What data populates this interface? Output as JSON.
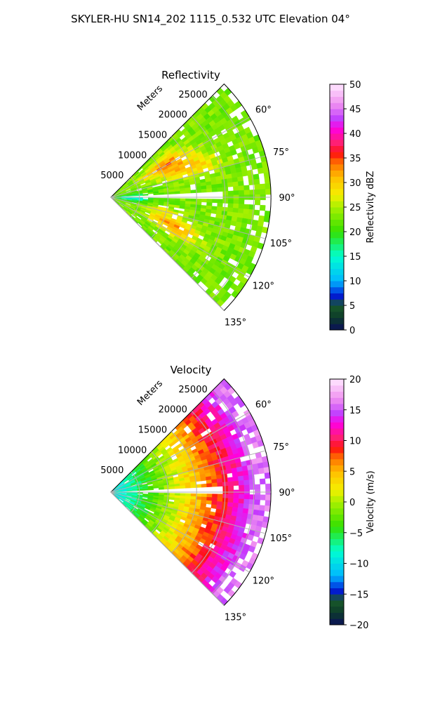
{
  "suptitle": "SKYLER-HU  SN14_202  1115_0.532 UTC Elevation 04°",
  "chart_data": [
    {
      "type": "heatmap",
      "title": "Reflectivity",
      "radial_axis_label": "Meters",
      "radial_ticks": [
        5000,
        10000,
        15000,
        20000,
        25000
      ],
      "radial_tick_labels": [
        "5000",
        "10000",
        "15000",
        "20000",
        "25000"
      ],
      "azimuth_ticks_deg": [
        60,
        75,
        90,
        105,
        120,
        135
      ],
      "azimuth_tick_labels": [
        "60°",
        "75°",
        "90°",
        "105°",
        "120°",
        "135°"
      ],
      "azimuth_range_deg": [
        45,
        135
      ],
      "range_max_m": 28000,
      "grid": true,
      "colorbar": {
        "label": "Reflectivity dBZ",
        "range": [
          0,
          50
        ],
        "ticks": [
          0,
          5,
          10,
          15,
          20,
          25,
          30,
          35,
          40,
          45,
          50
        ],
        "tick_labels": [
          "0",
          "5",
          "10",
          "15",
          "20",
          "25",
          "30",
          "35",
          "40",
          "45",
          "50"
        ]
      },
      "field_features": [
        {
          "type": "background",
          "value": 23
        },
        {
          "type": "blob",
          "az": 60,
          "r": 11000,
          "daz": 7,
          "dr": 4500,
          "amp": 11
        },
        {
          "type": "blob",
          "az": 70,
          "r": 15000,
          "daz": 6,
          "dr": 5000,
          "amp": 7
        },
        {
          "type": "blob",
          "az": 115,
          "r": 12000,
          "daz": 6,
          "dr": 4500,
          "amp": 10
        },
        {
          "type": "blob",
          "az": 105,
          "r": 9000,
          "daz": 5,
          "dr": 3500,
          "amp": 5
        },
        {
          "type": "blob",
          "az": 92,
          "r": 3500,
          "daz": 10,
          "dr": 3500,
          "amp": -9
        },
        {
          "type": "gap",
          "az_min": 88,
          "az_max": 91,
          "r_max": 20000
        }
      ]
    },
    {
      "type": "heatmap",
      "title": "Velocity",
      "radial_axis_label": "Meters",
      "radial_ticks": [
        5000,
        10000,
        15000,
        20000,
        25000
      ],
      "radial_tick_labels": [
        "5000",
        "10000",
        "15000",
        "20000",
        "25000"
      ],
      "azimuth_ticks_deg": [
        60,
        75,
        90,
        105,
        120,
        135
      ],
      "azimuth_tick_labels": [
        "60°",
        "75°",
        "90°",
        "105°",
        "120°",
        "135°"
      ],
      "azimuth_range_deg": [
        45,
        135
      ],
      "range_max_m": 28000,
      "grid": true,
      "colorbar": {
        "label": "Velocity (m/s)",
        "range": [
          -20,
          20
        ],
        "ticks": [
          -20,
          -15,
          -10,
          -5,
          0,
          5,
          10,
          15,
          20
        ],
        "tick_labels": [
          "−20",
          "−15",
          "−10",
          "−5",
          "0",
          "5",
          "10",
          "15",
          "20"
        ]
      },
      "field_features": [
        {
          "type": "radial_gradient",
          "range_near_m": 2000,
          "range_far_m": 26000,
          "value_near": -9,
          "value_far": 16
        },
        {
          "type": "gap",
          "az_min": 88,
          "az_max": 91,
          "r_max": 20000
        }
      ]
    }
  ]
}
